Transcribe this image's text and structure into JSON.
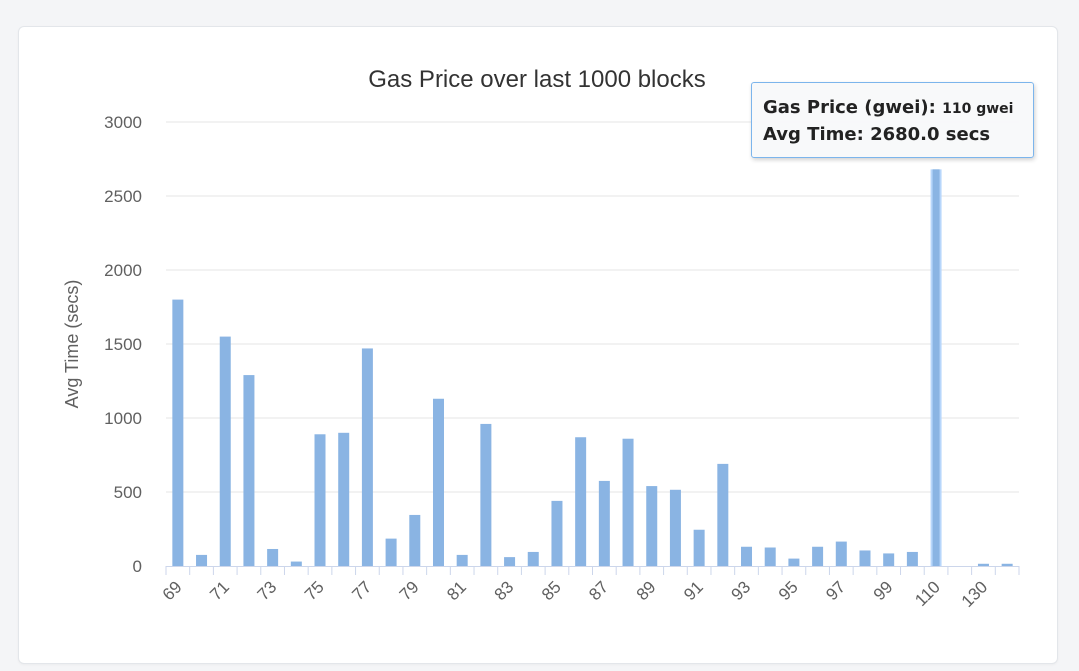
{
  "chart_data": {
    "type": "bar",
    "title": "Gas Price over last 1000 blocks",
    "xlabel": "",
    "ylabel": "Avg Time (secs)",
    "ylim": [
      0,
      3000
    ],
    "yticks": [
      0,
      500,
      1000,
      1500,
      2000,
      2500,
      3000
    ],
    "grid": true,
    "legend": "none",
    "categories": [
      "69",
      "70",
      "71",
      "72",
      "73",
      "74",
      "75",
      "76",
      "77",
      "78",
      "79",
      "80",
      "81",
      "82",
      "83",
      "84",
      "85",
      "86",
      "87",
      "88",
      "89",
      "90",
      "91",
      "92",
      "93",
      "94",
      "95",
      "96",
      "97",
      "98",
      "99",
      "100",
      "110",
      "120",
      "130",
      "140"
    ],
    "visible_tick_labels": [
      "69",
      "71",
      "73",
      "75",
      "77",
      "79",
      "81",
      "83",
      "85",
      "87",
      "89",
      "91",
      "93",
      "95",
      "97",
      "99",
      "110",
      "130"
    ],
    "values": [
      1800,
      75,
      1550,
      1290,
      115,
      30,
      890,
      900,
      1470,
      185,
      345,
      1130,
      75,
      960,
      60,
      95,
      440,
      870,
      575,
      860,
      540,
      515,
      245,
      690,
      130,
      125,
      50,
      130,
      165,
      105,
      85,
      95,
      2680,
      0,
      15,
      15
    ],
    "bar_color": "#8ab4e3",
    "highlight_color": "#b7d6fb",
    "highlight_index": 32
  },
  "tooltip": {
    "label1": "Gas Price (gwei):",
    "value1": "110 gwei",
    "label2": "Avg Time:",
    "value2": "2680.0 secs"
  }
}
